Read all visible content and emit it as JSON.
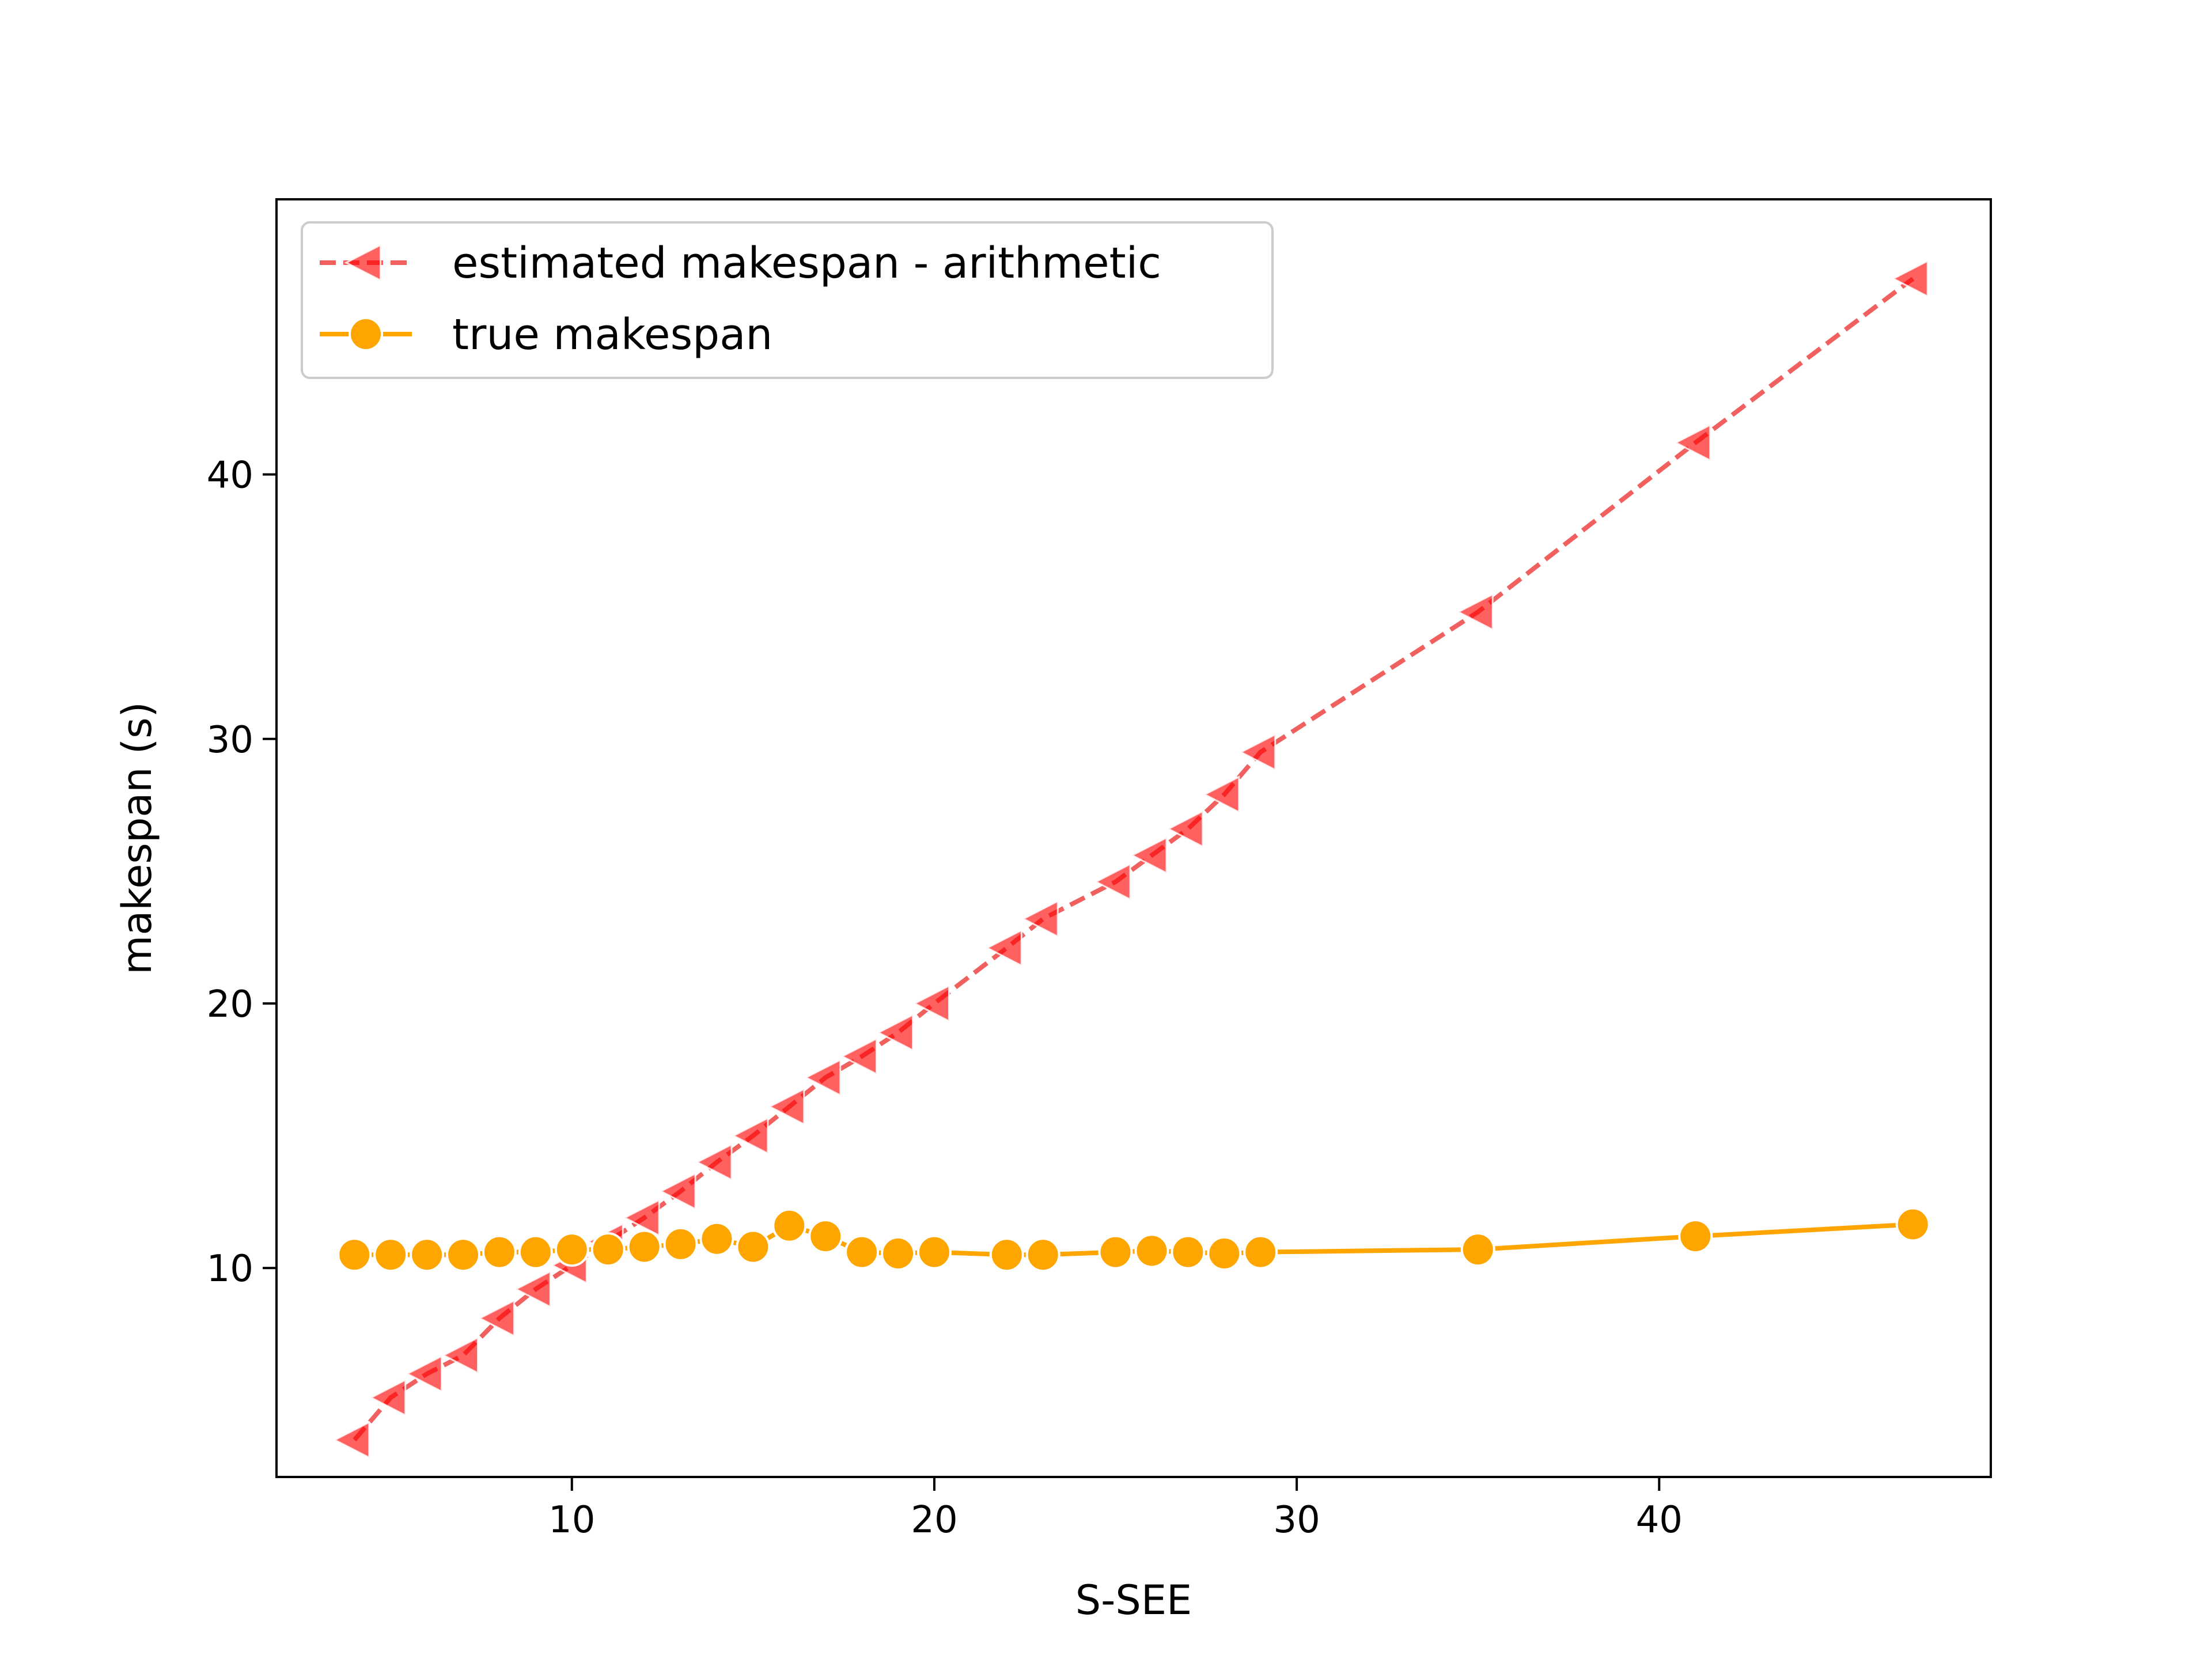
{
  "chart_data": {
    "type": "line",
    "title": "",
    "xlabel": "S-SEE",
    "ylabel": "makespan (s)",
    "xlim": [
      1.85,
      49.15
    ],
    "ylim": [
      2.1,
      50.4
    ],
    "xticks": [
      10,
      20,
      30,
      40
    ],
    "yticks": [
      10,
      20,
      30,
      40
    ],
    "grid": false,
    "legend_position": "upper-left",
    "x": [
      4,
      5,
      6,
      7,
      8,
      9,
      10,
      11,
      12,
      13,
      14,
      15,
      16,
      17,
      18,
      19,
      20,
      22,
      23,
      25,
      26,
      27,
      28,
      29,
      35,
      41,
      47
    ],
    "series": [
      {
        "name": "estimated makespan - arithmetic",
        "color": "#ff0000",
        "line_color": "#f0605f",
        "line_style": "dashed",
        "marker": "left-triangle",
        "values": [
          3.5,
          5.1,
          6.0,
          6.7,
          8.1,
          9.2,
          10.1,
          11.0,
          11.9,
          12.9,
          14.0,
          15.0,
          16.1,
          17.2,
          18.0,
          18.9,
          20.0,
          22.1,
          23.2,
          24.6,
          25.6,
          26.6,
          27.9,
          29.5,
          34.8,
          41.2,
          47.4
        ]
      },
      {
        "name": "true makespan",
        "color": "#ffa500",
        "line_color": "#ffa500",
        "line_style": "solid",
        "marker": "circle",
        "values": [
          10.5,
          10.5,
          10.5,
          10.5,
          10.6,
          10.6,
          10.7,
          10.7,
          10.8,
          10.9,
          11.1,
          10.8,
          11.6,
          11.2,
          10.6,
          10.55,
          10.6,
          10.5,
          10.5,
          10.6,
          10.65,
          10.6,
          10.55,
          10.6,
          10.7,
          11.2,
          11.65
        ]
      }
    ]
  }
}
